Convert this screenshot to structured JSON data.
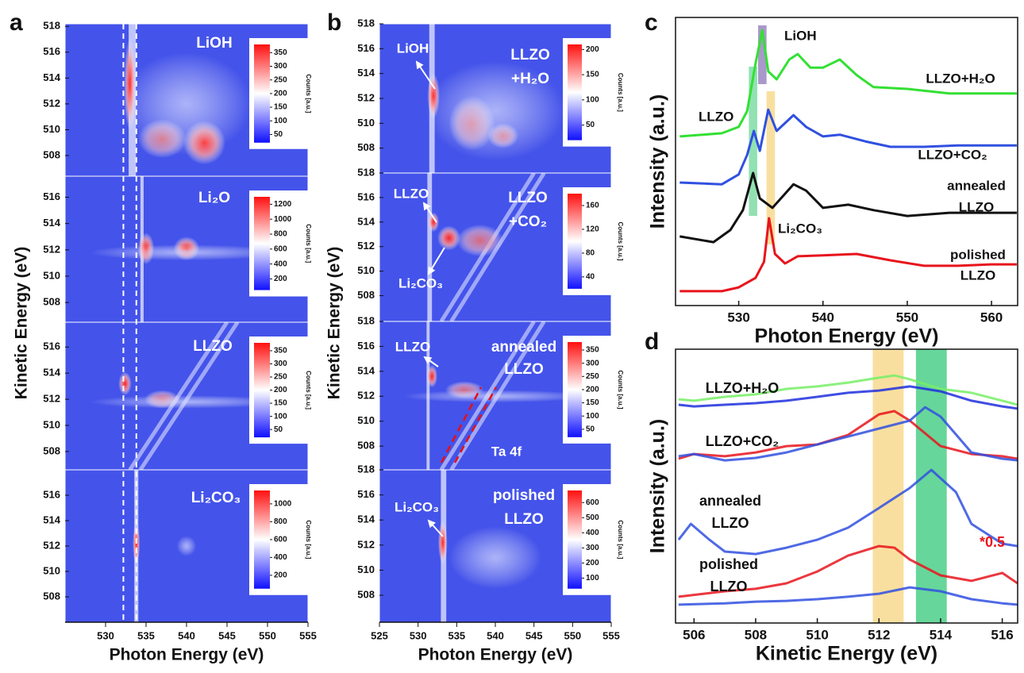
{
  "chart_data": [
    {
      "type": "heatmap-stack",
      "panel": "a",
      "xlabel": "Photon Energy (eV)",
      "ylabel": "Kinetic Energy (eV)",
      "xlim": [
        525,
        555
      ],
      "xticks": [
        530,
        535,
        540,
        545,
        550,
        555
      ],
      "vlines": [
        532.2,
        533.8
      ],
      "colorbar_label": "Counts [a.u.]",
      "subplots": [
        {
          "label": [
            "LiOH"
          ],
          "ylim": [
            506.4,
            518.2
          ],
          "yticks": [
            508,
            510,
            512,
            514,
            516,
            518
          ],
          "clim": [
            20,
            380
          ],
          "cticks": [
            50,
            100,
            150,
            200,
            250,
            300,
            350
          ],
          "annotations": []
        },
        {
          "label": [
            "Li₂O"
          ],
          "ylim": [
            506.5,
            517.6
          ],
          "yticks": [
            508,
            510,
            512,
            514,
            516
          ],
          "clim": [
            50,
            1300
          ],
          "cticks": [
            200,
            400,
            600,
            800,
            1000,
            1200
          ],
          "annotations": []
        },
        {
          "label": [
            "LLZO"
          ],
          "ylim": [
            506.6,
            517.9
          ],
          "yticks": [
            508,
            510,
            512,
            514,
            516
          ],
          "clim": [
            20,
            380
          ],
          "cticks": [
            50,
            100,
            150,
            200,
            250,
            300,
            350
          ],
          "annotations": []
        },
        {
          "label": [
            "Li₂CO₃"
          ],
          "ylim": [
            506,
            518
          ],
          "yticks": [
            508,
            510,
            512,
            514,
            516
          ],
          "clim": [
            50,
            1150
          ],
          "cticks": [
            200,
            400,
            600,
            800,
            1000
          ],
          "annotations": []
        }
      ]
    },
    {
      "type": "heatmap-stack",
      "panel": "b",
      "xlabel": "Photon Energy (eV)",
      "ylabel": "Kinetic Energy (eV)",
      "xlim": [
        525,
        555
      ],
      "xticks": [
        525,
        530,
        535,
        540,
        545,
        550,
        555
      ],
      "vlines": [],
      "colorbar_label": "Counts [a.u.]",
      "subplots": [
        {
          "label": [
            "LLZO",
            "+H₂O"
          ],
          "ylim": [
            506,
            518
          ],
          "yticks": [
            508,
            510,
            512,
            514,
            516,
            518
          ],
          "clim": [
            20,
            210
          ],
          "cticks": [
            50,
            100,
            150,
            200
          ],
          "annotations": [
            "LiOH"
          ]
        },
        {
          "label": [
            "LLZO",
            "+CO₂"
          ],
          "ylim": [
            505.9,
            518
          ],
          "yticks": [
            508,
            510,
            512,
            514,
            516,
            518
          ],
          "clim": [
            20,
            180
          ],
          "cticks": [
            40,
            80,
            120,
            160
          ],
          "annotations": [
            "LLZO",
            "Li₂CO₃"
          ]
        },
        {
          "label": [
            "annealed",
            "LLZO"
          ],
          "ylim": [
            506.1,
            518
          ],
          "yticks": [
            508,
            510,
            512,
            514,
            516,
            518
          ],
          "clim": [
            20,
            380
          ],
          "cticks": [
            50,
            100,
            150,
            200,
            250,
            300,
            350
          ],
          "annotations": [
            "LLZO",
            "Ta 4f"
          ]
        },
        {
          "label": [
            "polished",
            "LLZO"
          ],
          "ylim": [
            505.85,
            518
          ],
          "yticks": [
            508,
            510,
            512,
            514,
            516,
            518
          ],
          "clim": [
            30,
            680
          ],
          "cticks": [
            100,
            200,
            300,
            400,
            500,
            600
          ],
          "annotations": [
            "Li₂CO₃"
          ]
        }
      ]
    },
    {
      "type": "line",
      "panel": "c",
      "xlabel": "Photon Energy (eV)",
      "ylabel": "Intensity (a.u.)",
      "xlim": [
        522.5,
        563.1
      ],
      "xticks": [
        530,
        540,
        550,
        560
      ],
      "ylim": [
        0,
        10
      ],
      "bands": [
        {
          "label": [
            "LiOH"
          ],
          "color": "#9a86c0",
          "range": [
            532.3,
            533.3
          ]
        },
        {
          "label": [
            "LLZO"
          ],
          "color": "#7fdca6",
          "range": [
            531.2,
            532.2
          ]
        },
        {
          "label": [
            "Li₂CO₃"
          ],
          "color": "#f8d98e",
          "range": [
            533.3,
            534.3
          ]
        }
      ],
      "series": [
        {
          "label": [
            "LLZO+H₂O"
          ],
          "color": "#33e033",
          "x": [
            523,
            528,
            530,
            531,
            532,
            532.8,
            533.5,
            534.5,
            536,
            537,
            538.5,
            540,
            542,
            544,
            546,
            550,
            555,
            560,
            563
          ],
          "values": [
            5.87,
            5.98,
            6.2,
            6.75,
            8.4,
            9.56,
            8.13,
            7.85,
            8.54,
            8.73,
            8.26,
            8.26,
            8.54,
            8.0,
            7.58,
            7.52,
            7.36,
            7.36,
            7.36
          ]
        },
        {
          "label": [
            "LLZO+CO₂"
          ],
          "color": "#3050e0",
          "x": [
            523,
            528,
            530,
            531,
            531.8,
            532.5,
            533.5,
            534.5,
            536.5,
            538,
            540,
            542,
            545,
            548,
            552,
            556,
            560,
            563
          ],
          "values": [
            4.27,
            4.21,
            4.55,
            5.23,
            6.06,
            5.37,
            6.8,
            6.06,
            6.61,
            6.2,
            5.87,
            5.93,
            5.7,
            5.51,
            5.51,
            5.56,
            5.56,
            5.56
          ]
        },
        {
          "label": [
            "annealed",
            "LLZO"
          ],
          "color": "#111111",
          "x": [
            523,
            527,
            529,
            530.5,
            531.7,
            532.5,
            534,
            536.5,
            538,
            540,
            543,
            546,
            550,
            555,
            560,
            563
          ],
          "values": [
            2.4,
            2.2,
            2.62,
            3.31,
            4.6,
            3.72,
            3.39,
            4.21,
            3.99,
            3.39,
            3.5,
            3.31,
            3.11,
            3.22,
            3.22,
            3.22
          ]
        },
        {
          "label": [
            "polished",
            "LLZO"
          ],
          "color": "#e8141c",
          "x": [
            523,
            528,
            530,
            532,
            533,
            533.6,
            534.3,
            535.5,
            537,
            540,
            544,
            548,
            552,
            556,
            560,
            563
          ],
          "values": [
            0.5,
            0.5,
            0.63,
            0.96,
            1.52,
            3.03,
            1.79,
            1.46,
            1.71,
            1.74,
            1.79,
            1.57,
            1.38,
            1.38,
            1.43,
            1.43
          ]
        }
      ]
    },
    {
      "type": "line",
      "panel": "d",
      "xlabel": "Kinetic Energy (eV)",
      "ylabel": "Intensity (a.u.)",
      "xlim": [
        505.4,
        516.5
      ],
      "xticks": [
        506,
        508,
        510,
        512,
        514,
        516
      ],
      "ylim": [
        0,
        10
      ],
      "bands": [
        {
          "label": [],
          "color": "#f8d98e",
          "range": [
            511.8,
            512.8
          ]
        },
        {
          "label": [],
          "color": "#4ccf88",
          "range": [
            513.2,
            514.2
          ]
        }
      ],
      "series": [
        {
          "label": [],
          "color": "#77ee66",
          "x": [
            505.5,
            506,
            507,
            508,
            509,
            510,
            511,
            512,
            512.5,
            513,
            514,
            515,
            516,
            516.5
          ],
          "values": [
            8.17,
            8.12,
            8.26,
            8.35,
            8.55,
            8.64,
            8.78,
            8.96,
            9.04,
            8.9,
            8.55,
            8.41,
            8.12,
            7.97
          ]
        },
        {
          "label": [],
          "color": "#1f2fdd",
          "x": [
            505.5,
            506,
            507,
            508,
            509,
            510,
            511,
            512,
            513,
            514,
            515,
            516,
            516.5
          ],
          "values": [
            7.97,
            7.91,
            7.97,
            8.03,
            8.12,
            8.26,
            8.41,
            8.49,
            8.64,
            8.46,
            8.12,
            7.91,
            7.83
          ]
        },
        {
          "label": [],
          "color": "#e8141c",
          "x": [
            505.5,
            506,
            507,
            508,
            509,
            510,
            511,
            512,
            512.5,
            513,
            514,
            515,
            516,
            516.5
          ],
          "values": [
            6.0,
            6.17,
            6.09,
            6.23,
            6.46,
            6.52,
            6.87,
            7.62,
            7.74,
            7.39,
            6.46,
            6.17,
            6.09,
            6.0
          ]
        },
        {
          "label": [],
          "color": "#3050e0",
          "x": [
            505.5,
            506,
            507,
            508,
            509,
            510,
            511,
            512,
            513,
            513.5,
            514,
            515,
            516,
            516.5
          ],
          "values": [
            6.09,
            6.17,
            5.94,
            6.03,
            6.23,
            6.52,
            6.81,
            7.1,
            7.39,
            7.88,
            7.54,
            6.23,
            6.0,
            5.94
          ]
        },
        {
          "label": [],
          "color": "#3050e0",
          "x": [
            505.5,
            505.9,
            506.5,
            507,
            508,
            509,
            510,
            511,
            512,
            513,
            513.7,
            514.5,
            515,
            516,
            516.5
          ],
          "values": [
            3.04,
            3.62,
            3.04,
            2.61,
            2.52,
            2.75,
            3.04,
            3.48,
            4.2,
            4.93,
            5.59,
            4.78,
            3.62,
            2.9,
            2.81
          ]
        },
        {
          "label": [],
          "color": "#e8141c",
          "x": [
            505.5,
            507,
            508,
            509,
            510,
            511,
            512,
            512.5,
            513,
            514,
            515,
            516,
            516.5
          ],
          "values": [
            0.96,
            1.16,
            1.25,
            1.45,
            1.88,
            2.46,
            2.81,
            2.75,
            2.32,
            1.74,
            1.54,
            1.83,
            1.45
          ]
        },
        {
          "label": [],
          "color": "#3050e0",
          "x": [
            505.5,
            507,
            508,
            509,
            510,
            511,
            512,
            513,
            514,
            515,
            516,
            516.5
          ],
          "values": [
            0.67,
            0.72,
            0.78,
            0.81,
            0.87,
            0.96,
            1.07,
            1.3,
            1.16,
            0.87,
            0.72,
            0.67
          ]
        }
      ],
      "annotations": [
        {
          "text": [
            "LLZO+H₂O"
          ],
          "color": "#111111"
        },
        {
          "text": [
            "LLZO+CO₂"
          ],
          "color": "#111111"
        },
        {
          "text": [
            "annealed",
            "LLZO"
          ],
          "color": "#111111"
        },
        {
          "text": [
            "polished",
            "LLZO"
          ],
          "color": "#111111"
        },
        {
          "text": [
            "*0.5"
          ],
          "color": "#e8141c"
        }
      ]
    }
  ]
}
